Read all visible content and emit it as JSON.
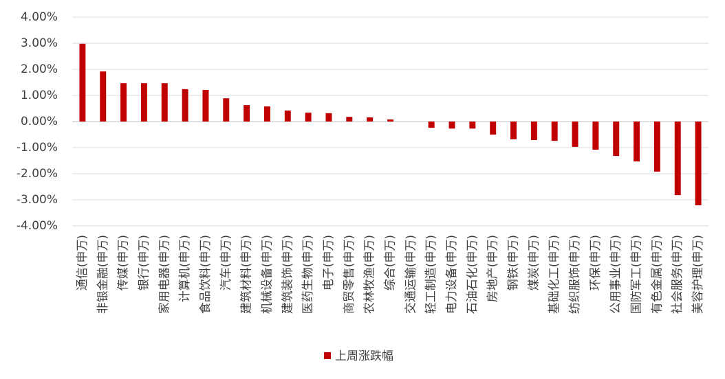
{
  "chart_data": {
    "type": "bar",
    "categories": [
      "通信(申万)",
      "非银金融(申万)",
      "传媒(申万)",
      "银行(申万)",
      "家用电器(申万)",
      "计算机(申万)",
      "食品饮料(申万)",
      "汽车(申万)",
      "建筑材料(申万)",
      "机械设备(申万)",
      "建筑装饰(申万)",
      "医药生物(申万)",
      "电子(申万)",
      "商贸零售(申万)",
      "农林牧渔(申万)",
      "综合(申万)",
      "交通运输(申万)",
      "轻工制造(申万)",
      "电力设备(申万)",
      "石油石化(申万)",
      "房地产(申万)",
      "钢铁(申万)",
      "煤炭(申万)",
      "基础化工(申万)",
      "纺织服饰(申万)",
      "环保(申万)",
      "公用事业(申万)",
      "国防军工(申万)",
      "有色金属(申万)",
      "社会服务(申万)",
      "美容护理(申万)"
    ],
    "series": [
      {
        "name": "上周涨跌幅",
        "color": "#c00000",
        "values": [
          2.98,
          1.92,
          1.47,
          1.47,
          1.47,
          1.24,
          1.21,
          0.89,
          0.63,
          0.58,
          0.42,
          0.34,
          0.32,
          0.18,
          0.16,
          0.08,
          0,
          -0.24,
          -0.27,
          -0.27,
          -0.5,
          -0.68,
          -0.71,
          -0.74,
          -0.97,
          -1.08,
          -1.32,
          -1.53,
          -1.92,
          -2.82,
          -3.21
        ]
      }
    ],
    "ylim": [
      -4,
      4
    ],
    "yticks": [
      {
        "value": 4,
        "label": "4.00%"
      },
      {
        "value": 3,
        "label": "3.00%"
      },
      {
        "value": 2,
        "label": "2.00%"
      },
      {
        "value": 1,
        "label": "1.00%"
      },
      {
        "value": 0,
        "label": "0.00%"
      },
      {
        "value": -1,
        "label": "-1.00%"
      },
      {
        "value": -2,
        "label": "-2.00%"
      },
      {
        "value": -3,
        "label": "-3.00%"
      },
      {
        "value": -4,
        "label": "-4.00%"
      }
    ],
    "grid": true,
    "legend": "bottom"
  }
}
